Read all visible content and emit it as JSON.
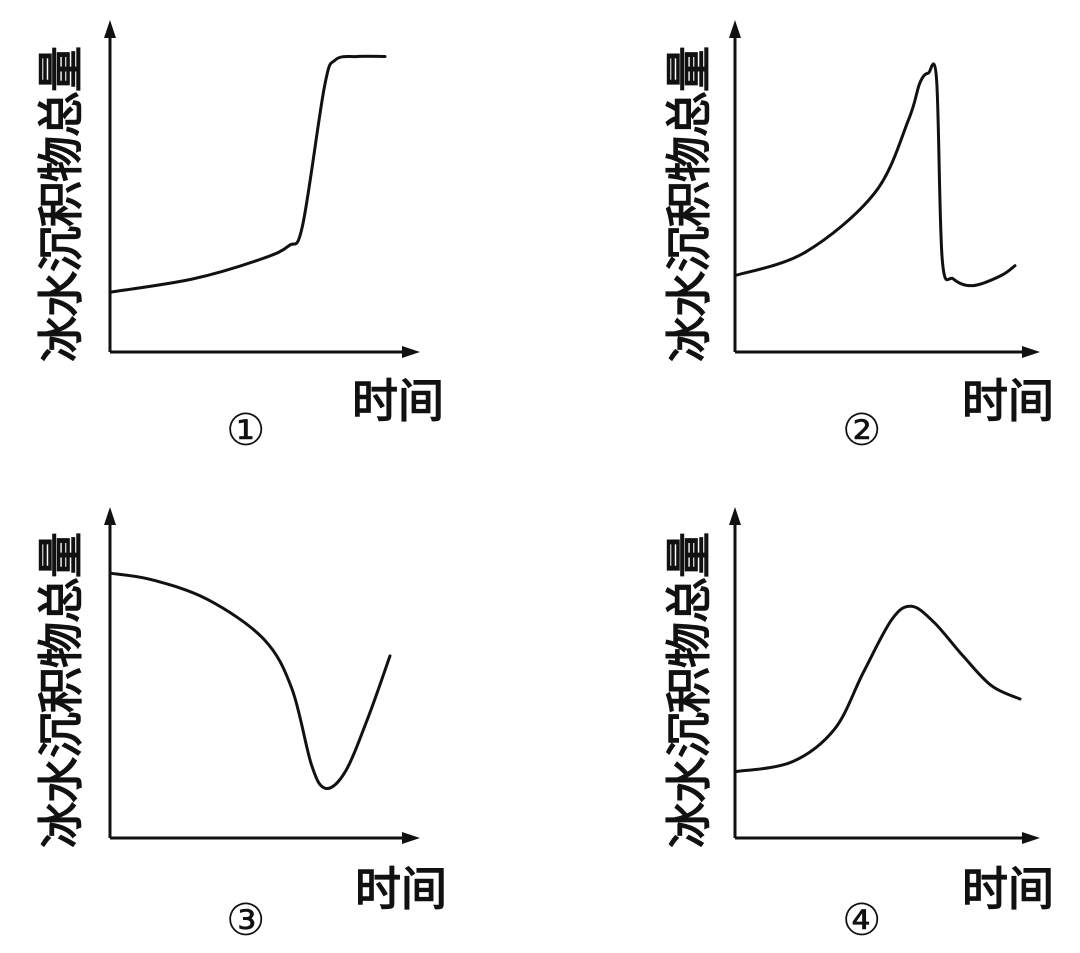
{
  "chart_data": [
    {
      "type": "line",
      "ylabel": "冰水沉积物总量",
      "xlabel": "时间",
      "panel_label": "①",
      "series": [
        {
          "x": [
            0,
            0.3,
            0.55,
            0.65,
            0.7,
            0.78,
            0.82,
            0.9,
            1.0
          ],
          "y": [
            0.18,
            0.22,
            0.28,
            0.32,
            0.38,
            0.8,
            0.88,
            0.89,
            0.89
          ]
        }
      ]
    },
    {
      "type": "line",
      "ylabel": "冰水沉积物总量",
      "xlabel": "时间",
      "panel_label": "②",
      "series": [
        {
          "x": [
            0,
            0.25,
            0.5,
            0.62,
            0.66,
            0.69,
            0.72,
            0.74,
            0.78,
            0.85,
            0.95,
            1.0
          ],
          "y": [
            0.23,
            0.3,
            0.48,
            0.7,
            0.81,
            0.84,
            0.82,
            0.28,
            0.22,
            0.2,
            0.23,
            0.26
          ]
        }
      ]
    },
    {
      "type": "line",
      "ylabel": "冰水沉积物总量",
      "xlabel": "时间",
      "panel_label": "③",
      "series": [
        {
          "x": [
            0,
            0.15,
            0.35,
            0.55,
            0.65,
            0.72,
            0.77,
            0.84,
            0.92,
            1.0
          ],
          "y": [
            0.8,
            0.78,
            0.72,
            0.6,
            0.45,
            0.22,
            0.15,
            0.2,
            0.36,
            0.55
          ]
        }
      ]
    },
    {
      "type": "line",
      "ylabel": "冰水沉积物总量",
      "xlabel": "时间",
      "panel_label": "④",
      "series": [
        {
          "x": [
            0,
            0.2,
            0.35,
            0.45,
            0.55,
            0.62,
            0.7,
            0.8,
            0.9,
            1.0
          ],
          "y": [
            0.2,
            0.23,
            0.33,
            0.5,
            0.66,
            0.7,
            0.65,
            0.55,
            0.46,
            0.42
          ]
        }
      ]
    }
  ]
}
